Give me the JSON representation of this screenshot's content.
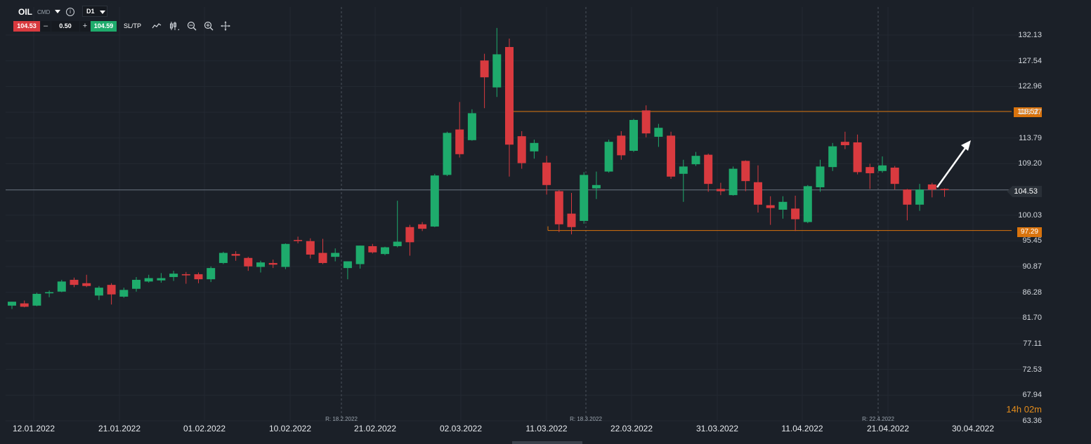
{
  "header": {
    "symbol": "OIL",
    "symbol_type": "CMD",
    "info_glyph": "i",
    "timeframe": "D1"
  },
  "trade": {
    "sell_price": "104.53",
    "minus": "–",
    "quantity": "0.50",
    "plus": "+",
    "buy_price": "104.59",
    "sltp_label": "SL/TP"
  },
  "toolbar_icons": [
    "line-chart-icon",
    "candlestick-icon",
    "zoom-out-icon",
    "zoom-in-icon",
    "crosshair-move-icon"
  ],
  "colors": {
    "background": "#1b2028",
    "bull": "#1eab6c",
    "bear": "#d93a3f",
    "level_line": "#d9730d",
    "current_line": "#6b7480"
  },
  "levels": {
    "resistance": "118.52",
    "support": "97.29",
    "current": "104.53"
  },
  "countdown": "14h 02m",
  "chart_data": {
    "type": "candlestick",
    "instrument": "OIL",
    "timeframe": "D1",
    "y_ticks": [
      "132.13",
      "127.54",
      "122.96",
      "118.37",
      "113.79",
      "109.20",
      "104.53",
      "100.03",
      "95.45",
      "90.87",
      "86.28",
      "81.70",
      "77.11",
      "72.53",
      "67.94",
      "63.36"
    ],
    "ylim": [
      63.36,
      132.13
    ],
    "x_ticks": [
      "12.01.2022",
      "21.01.2022",
      "01.02.2022",
      "10.02.2022",
      "21.02.2022",
      "02.03.2022",
      "11.03.2022",
      "22.03.2022",
      "31.03.2022",
      "11.04.2022",
      "21.04.2022",
      "30.04.2022"
    ],
    "rollover_markers": [
      "R: 18.2.2022",
      "R: 18.3.2022",
      "R: 22.4.2022"
    ],
    "horizontal_levels": [
      118.52,
      97.29
    ],
    "current_price": 104.53,
    "candles": [
      {
        "o": 83.9,
        "h": 84.6,
        "l": 83.3,
        "c": 84.6
      },
      {
        "o": 84.3,
        "h": 84.8,
        "l": 83.6,
        "c": 83.7
      },
      {
        "o": 83.9,
        "h": 86.2,
        "l": 83.8,
        "c": 86.0
      },
      {
        "o": 86.1,
        "h": 86.6,
        "l": 85.4,
        "c": 86.3
      },
      {
        "o": 86.4,
        "h": 88.5,
        "l": 86.3,
        "c": 88.2
      },
      {
        "o": 88.5,
        "h": 88.9,
        "l": 87.2,
        "c": 87.6
      },
      {
        "o": 87.9,
        "h": 89.4,
        "l": 87.2,
        "c": 87.4
      },
      {
        "o": 85.7,
        "h": 87.4,
        "l": 84.9,
        "c": 87.1
      },
      {
        "o": 87.6,
        "h": 87.9,
        "l": 84.1,
        "c": 85.9
      },
      {
        "o": 85.5,
        "h": 87.1,
        "l": 85.3,
        "c": 86.7
      },
      {
        "o": 86.9,
        "h": 89.0,
        "l": 86.4,
        "c": 88.5
      },
      {
        "o": 88.2,
        "h": 89.4,
        "l": 88.0,
        "c": 88.8
      },
      {
        "o": 88.4,
        "h": 89.7,
        "l": 88.0,
        "c": 88.8
      },
      {
        "o": 89.0,
        "h": 90.1,
        "l": 88.3,
        "c": 89.6
      },
      {
        "o": 89.5,
        "h": 89.9,
        "l": 87.8,
        "c": 89.3
      },
      {
        "o": 89.5,
        "h": 89.8,
        "l": 87.9,
        "c": 88.6
      },
      {
        "o": 88.6,
        "h": 90.9,
        "l": 88.1,
        "c": 90.6
      },
      {
        "o": 91.5,
        "h": 93.5,
        "l": 91.3,
        "c": 93.3
      },
      {
        "o": 93.1,
        "h": 93.6,
        "l": 91.9,
        "c": 92.8
      },
      {
        "o": 92.4,
        "h": 92.6,
        "l": 90.1,
        "c": 90.9
      },
      {
        "o": 90.8,
        "h": 91.9,
        "l": 89.8,
        "c": 91.6
      },
      {
        "o": 91.5,
        "h": 92.1,
        "l": 90.6,
        "c": 91.2
      },
      {
        "o": 90.8,
        "h": 95.0,
        "l": 90.4,
        "c": 94.9
      },
      {
        "o": 95.6,
        "h": 96.2,
        "l": 95.0,
        "c": 95.4
      },
      {
        "o": 95.4,
        "h": 95.9,
        "l": 92.3,
        "c": 93.0
      },
      {
        "o": 93.3,
        "h": 95.8,
        "l": 91.3,
        "c": 91.5
      },
      {
        "o": 92.6,
        "h": 94.1,
        "l": 91.8,
        "c": 93.3
      },
      {
        "o": 90.6,
        "h": 91.8,
        "l": 88.6,
        "c": 91.8
      },
      {
        "o": 91.3,
        "h": 94.6,
        "l": 90.5,
        "c": 94.6
      },
      {
        "o": 94.5,
        "h": 94.9,
        "l": 93.2,
        "c": 93.4
      },
      {
        "o": 93.1,
        "h": 94.4,
        "l": 92.9,
        "c": 94.3
      },
      {
        "o": 94.5,
        "h": 102.6,
        "l": 94.3,
        "c": 95.3
      },
      {
        "o": 97.9,
        "h": 98.3,
        "l": 92.8,
        "c": 95.2
      },
      {
        "o": 98.4,
        "h": 98.8,
        "l": 97.2,
        "c": 97.6
      },
      {
        "o": 98.0,
        "h": 107.4,
        "l": 97.9,
        "c": 107.1
      },
      {
        "o": 107.2,
        "h": 114.9,
        "l": 107.0,
        "c": 114.7
      },
      {
        "o": 115.3,
        "h": 120.2,
        "l": 110.3,
        "c": 110.9
      },
      {
        "o": 113.4,
        "h": 118.9,
        "l": 113.3,
        "c": 118.2
      },
      {
        "o": 127.6,
        "h": 128.8,
        "l": 119.1,
        "c": 124.6
      },
      {
        "o": 122.8,
        "h": 133.4,
        "l": 121.1,
        "c": 128.7
      },
      {
        "o": 130.0,
        "h": 131.5,
        "l": 106.9,
        "c": 112.6
      },
      {
        "o": 114.1,
        "h": 115.0,
        "l": 108.3,
        "c": 109.3
      },
      {
        "o": 111.4,
        "h": 113.5,
        "l": 110.1,
        "c": 112.9
      },
      {
        "o": 109.4,
        "h": 110.6,
        "l": 103.7,
        "c": 105.4
      },
      {
        "o": 104.3,
        "h": 104.5,
        "l": 97.0,
        "c": 98.4
      },
      {
        "o": 100.3,
        "h": 104.0,
        "l": 96.6,
        "c": 97.9
      },
      {
        "o": 99.0,
        "h": 107.7,
        "l": 98.5,
        "c": 107.2
      },
      {
        "o": 104.8,
        "h": 107.8,
        "l": 102.9,
        "c": 105.4
      },
      {
        "o": 107.8,
        "h": 113.5,
        "l": 107.6,
        "c": 113.1
      },
      {
        "o": 114.2,
        "h": 115.0,
        "l": 109.9,
        "c": 110.7
      },
      {
        "o": 111.5,
        "h": 117.2,
        "l": 111.3,
        "c": 117.0
      },
      {
        "o": 118.7,
        "h": 119.6,
        "l": 113.9,
        "c": 114.6
      },
      {
        "o": 114.0,
        "h": 116.3,
        "l": 112.2,
        "c": 115.6
      },
      {
        "o": 114.2,
        "h": 114.9,
        "l": 106.5,
        "c": 106.9
      },
      {
        "o": 107.4,
        "h": 109.9,
        "l": 102.4,
        "c": 108.7
      },
      {
        "o": 109.1,
        "h": 111.3,
        "l": 108.8,
        "c": 110.6
      },
      {
        "o": 110.8,
        "h": 111.0,
        "l": 104.2,
        "c": 105.6
      },
      {
        "o": 104.7,
        "h": 105.8,
        "l": 103.6,
        "c": 104.3
      },
      {
        "o": 103.6,
        "h": 108.7,
        "l": 103.5,
        "c": 108.3
      },
      {
        "o": 109.7,
        "h": 109.8,
        "l": 104.3,
        "c": 106.1
      },
      {
        "o": 105.9,
        "h": 108.9,
        "l": 100.5,
        "c": 101.9
      },
      {
        "o": 101.8,
        "h": 103.4,
        "l": 98.3,
        "c": 101.3
      },
      {
        "o": 101.0,
        "h": 103.4,
        "l": 99.4,
        "c": 102.4
      },
      {
        "o": 101.2,
        "h": 103.5,
        "l": 97.2,
        "c": 99.3
      },
      {
        "o": 98.8,
        "h": 105.4,
        "l": 98.6,
        "c": 105.2
      },
      {
        "o": 105.0,
        "h": 109.9,
        "l": 104.2,
        "c": 108.7
      },
      {
        "o": 108.6,
        "h": 112.9,
        "l": 107.9,
        "c": 112.3
      },
      {
        "o": 113.1,
        "h": 114.9,
        "l": 111.8,
        "c": 112.5
      },
      {
        "o": 113.0,
        "h": 114.4,
        "l": 107.3,
        "c": 107.7
      },
      {
        "o": 108.6,
        "h": 109.2,
        "l": 104.7,
        "c": 107.5
      },
      {
        "o": 107.9,
        "h": 110.5,
        "l": 107.6,
        "c": 108.9
      },
      {
        "o": 108.5,
        "h": 108.8,
        "l": 104.6,
        "c": 105.6
      },
      {
        "o": 104.6,
        "h": 104.7,
        "l": 99.1,
        "c": 101.9
      },
      {
        "o": 101.9,
        "h": 105.6,
        "l": 100.8,
        "c": 104.6
      },
      {
        "o": 105.5,
        "h": 105.8,
        "l": 103.2,
        "c": 104.6
      },
      {
        "o": 104.7,
        "h": 104.8,
        "l": 103.3,
        "c": 104.5
      }
    ]
  }
}
